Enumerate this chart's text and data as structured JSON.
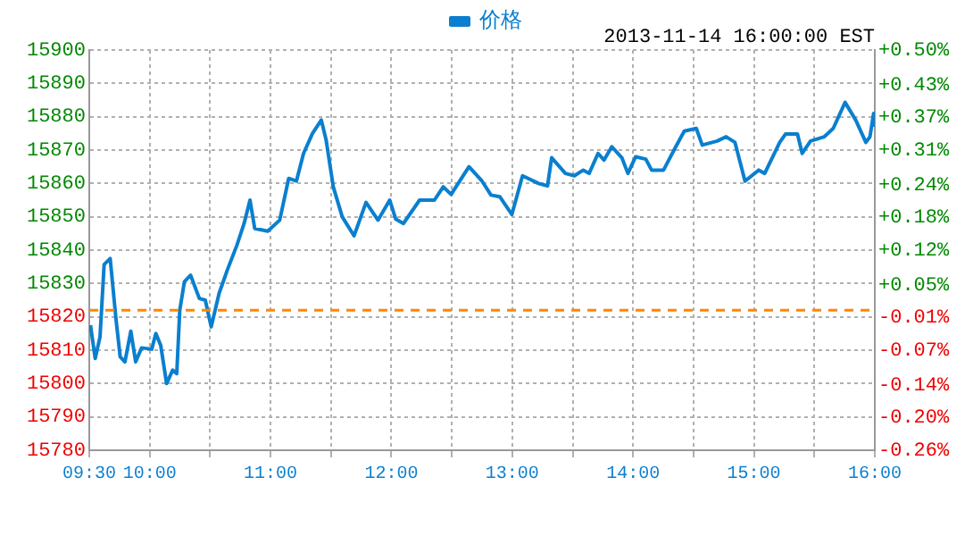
{
  "chart_data": {
    "type": "line",
    "x": [
      9.51,
      9.549,
      9.589,
      9.623,
      9.673,
      9.722,
      9.756,
      9.795,
      9.844,
      9.884,
      9.933,
      10.017,
      10.051,
      10.091,
      10.14,
      10.19,
      10.224,
      10.249,
      10.287,
      10.338,
      10.411,
      10.46,
      10.509,
      10.574,
      10.642,
      10.722,
      10.781,
      10.83,
      10.869,
      10.977,
      11.076,
      11.15,
      11.214,
      11.273,
      11.347,
      11.42,
      11.46,
      11.519,
      11.593,
      11.691,
      11.79,
      11.889,
      11.986,
      12.036,
      12.1,
      12.233,
      12.356,
      12.429,
      12.494,
      12.642,
      12.75,
      12.824,
      12.898,
      12.997,
      13.085,
      13.218,
      13.292,
      13.326,
      13.44,
      13.514,
      13.588,
      13.636,
      13.71,
      13.759,
      13.824,
      13.907,
      13.957,
      14.021,
      14.105,
      14.153,
      14.252,
      14.35,
      14.424,
      14.523,
      14.572,
      14.696,
      14.77,
      14.843,
      14.926,
      15.04,
      15.089,
      15.213,
      15.261,
      15.36,
      15.399,
      15.468,
      15.582,
      15.656,
      15.754,
      15.842,
      15.926,
      15.96,
      15.99,
      16
    ],
    "series": [
      {
        "name": "价格",
        "color": "#0a7fcf",
        "values": [
          15817.5,
          15807.5,
          15814,
          15835.7,
          15837.5,
          15819,
          15808,
          15806.5,
          15815.7,
          15806.5,
          15810.7,
          15810.3,
          15815,
          15811.5,
          15800,
          15804,
          15803,
          15822,
          15830.5,
          15832.5,
          15825.5,
          15825,
          15817,
          15827,
          15834,
          15841.5,
          15848,
          15855,
          15846.5,
          15845.7,
          15849,
          15861.5,
          15860.7,
          15869,
          15875,
          15879,
          15873,
          15859,
          15850,
          15844.3,
          15854.3,
          15849,
          15855,
          15849.3,
          15848,
          15855,
          15855,
          15859,
          15856.7,
          15865,
          15860.7,
          15856.5,
          15856,
          15850.7,
          15862.3,
          15860,
          15859.3,
          15867.7,
          15863,
          15862.3,
          15864,
          15863,
          15869,
          15867,
          15871,
          15867.7,
          15863,
          15868,
          15867.3,
          15864,
          15864,
          15870.8,
          15875.7,
          15876.5,
          15871.5,
          15872.7,
          15874,
          15872.3,
          15860.7,
          15864,
          15863,
          15872.3,
          15874.8,
          15874.8,
          15869,
          15872.7,
          15874,
          15876.5,
          15884.3,
          15879,
          15872.3,
          15874,
          15881,
          15877
        ]
      }
    ],
    "xlim": [
      9.5,
      16
    ],
    "xticks": [
      {
        "value": 9.5,
        "label": "09:30"
      },
      {
        "value": 10,
        "label": "10:00"
      },
      {
        "value": 10.5,
        "label": null
      },
      {
        "value": 11,
        "label": "11:00"
      },
      {
        "value": 11.5,
        "label": null
      },
      {
        "value": 12,
        "label": "12:00"
      },
      {
        "value": 12.5,
        "label": null
      },
      {
        "value": 13,
        "label": "13:00"
      },
      {
        "value": 13.5,
        "label": null
      },
      {
        "value": 14,
        "label": "14:00"
      },
      {
        "value": 14.5,
        "label": null
      },
      {
        "value": 15,
        "label": "15:00"
      },
      {
        "value": 15.5,
        "label": null
      },
      {
        "value": 16,
        "label": "16:00"
      }
    ],
    "ylim": [
      15780,
      15900
    ],
    "yticks": [
      15780,
      15790,
      15800,
      15810,
      15820,
      15830,
      15840,
      15850,
      15860,
      15870,
      15880,
      15890,
      15900
    ],
    "y2lim": [
      -0.26,
      0.5
    ],
    "y2ticks": [
      {
        "value": -0.26,
        "label": "-0.26%"
      },
      {
        "value": -0.197,
        "label": "-0.20%"
      },
      {
        "value": -0.136,
        "label": "-0.14%"
      },
      {
        "value": -0.07,
        "label": "-0.07%"
      },
      {
        "value": -0.007,
        "label": "-0.01%"
      },
      {
        "value": 0.054,
        "label": "+0.05%"
      },
      {
        "value": 0.12,
        "label": "+0.12%"
      },
      {
        "value": 0.183,
        "label": "+0.18%"
      },
      {
        "value": 0.244,
        "label": "+0.24%"
      },
      {
        "value": 0.31,
        "label": "+0.31%"
      },
      {
        "value": 0.373,
        "label": "+0.37%"
      },
      {
        "value": 0.434,
        "label": "+0.43%"
      },
      {
        "value": 0.5,
        "label": "+0.50%"
      }
    ],
    "grid": true,
    "legend": "top",
    "marker": "none",
    "line_style": "solid",
    "ref_lines": [
      {
        "axis": "y",
        "value": 15822,
        "color": "#ff8800",
        "line_style": "dashed"
      }
    ],
    "annotations": [
      "2013-11-14 16:00:00 EST"
    ]
  }
}
